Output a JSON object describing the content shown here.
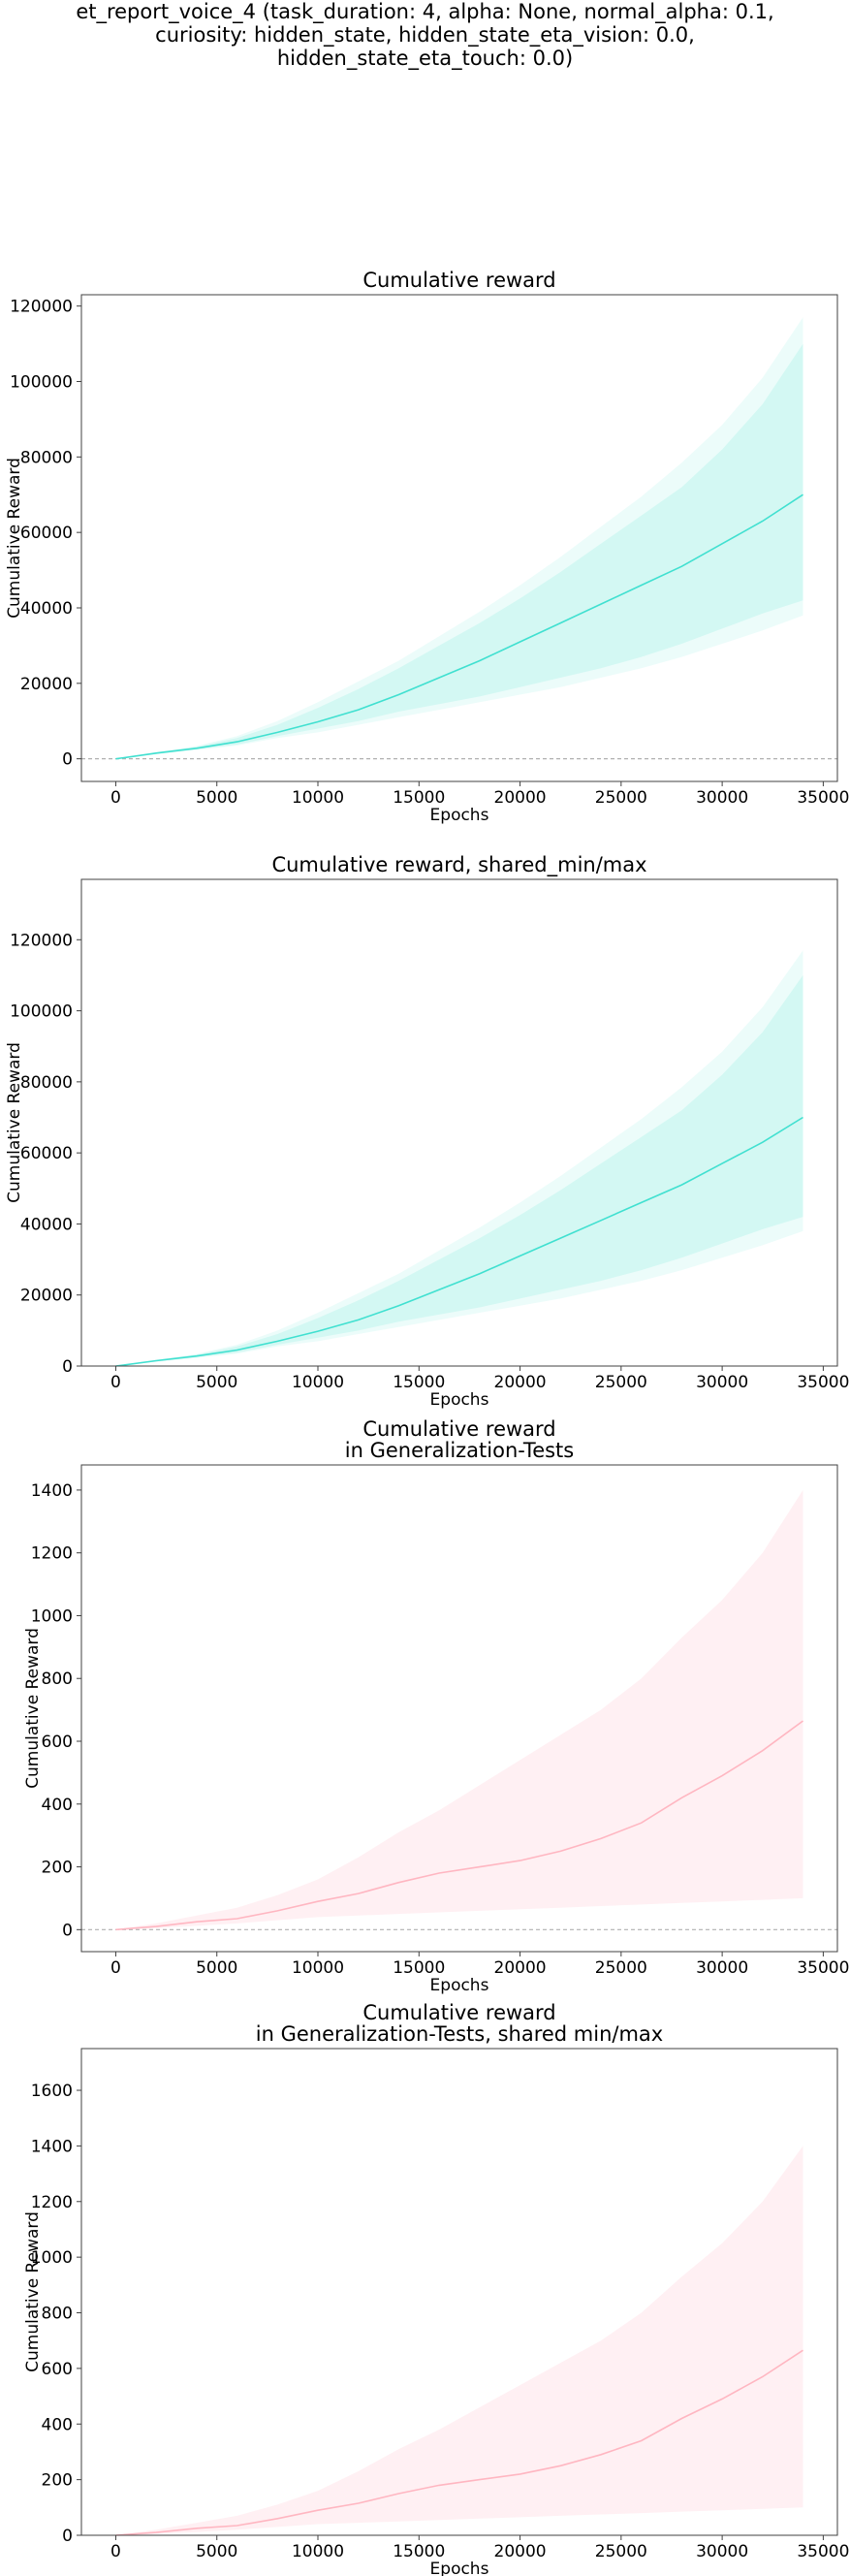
{
  "figure": {
    "title_lines": [
      "et_report_voice_4 (task_duration: 4, alpha: None, normal_alpha: 0.1,",
      "curiosity: hidden_state, hidden_state_eta_vision: 0.0,",
      "hidden_state_eta_touch: 0.0)"
    ]
  },
  "colors": {
    "train_line": "#40e0d0",
    "train_band": "#40e0d0",
    "test_line": "#ffb6c1",
    "test_band": "#ffc0cb",
    "zero_line": "#b0b0b0",
    "axis": "#404040"
  },
  "chart_data": [
    {
      "type": "line",
      "title_lines": [
        "Cumulative reward"
      ],
      "xlabel": "Epochs",
      "ylabel": "Cumulative Reward",
      "xlim": [
        -1700,
        35700
      ],
      "ylim": [
        -6000,
        123000
      ],
      "xticks": [
        0,
        5000,
        10000,
        15000,
        20000,
        25000,
        30000,
        35000
      ],
      "yticks": [
        0,
        20000,
        40000,
        60000,
        80000,
        100000,
        120000
      ],
      "zero_line": true,
      "theme": "train",
      "x": [
        0,
        2000,
        4000,
        6000,
        8000,
        10000,
        12000,
        14000,
        16000,
        18000,
        20000,
        22000,
        24000,
        26000,
        28000,
        30000,
        32000,
        34000
      ],
      "series": [
        {
          "role": "mean",
          "values": [
            0,
            1500,
            2800,
            4500,
            7000,
            9800,
            13000,
            17000,
            21500,
            26000,
            31000,
            36000,
            41000,
            46000,
            51000,
            57000,
            63000,
            70000
          ]
        },
        {
          "role": "band_inner",
          "lower": [
            0,
            1300,
            2500,
            3800,
            6000,
            8000,
            10000,
            12500,
            14500,
            16500,
            19000,
            21500,
            24000,
            27000,
            30500,
            34500,
            38500,
            42000
          ],
          "upper": [
            0,
            1700,
            3200,
            5500,
            9000,
            13500,
            18500,
            24000,
            30000,
            36000,
            42500,
            49500,
            57000,
            64500,
            72000,
            82000,
            94000,
            110000
          ]
        },
        {
          "role": "band_outer",
          "lower": [
            0,
            1200,
            2300,
            3500,
            5500,
            7000,
            9000,
            11000,
            13000,
            15000,
            17000,
            19000,
            21500,
            24000,
            27000,
            30500,
            34000,
            38000
          ],
          "upper": [
            0,
            1800,
            3400,
            6000,
            10000,
            15000,
            20500,
            26000,
            32500,
            39000,
            46000,
            53500,
            61500,
            69500,
            78500,
            88500,
            101000,
            117000
          ]
        }
      ]
    },
    {
      "type": "line",
      "title_lines": [
        "Cumulative reward, shared_min/max"
      ],
      "xlabel": "Epochs",
      "ylabel": "Cumulative Reward",
      "xlim": [
        -1700,
        35700
      ],
      "ylim": [
        0,
        137000
      ],
      "xticks": [
        0,
        5000,
        10000,
        15000,
        20000,
        25000,
        30000,
        35000
      ],
      "yticks": [
        0,
        20000,
        40000,
        60000,
        80000,
        100000,
        120000
      ],
      "zero_line": false,
      "theme": "train",
      "x": [
        0,
        2000,
        4000,
        6000,
        8000,
        10000,
        12000,
        14000,
        16000,
        18000,
        20000,
        22000,
        24000,
        26000,
        28000,
        30000,
        32000,
        34000
      ],
      "series": [
        {
          "role": "mean",
          "values": [
            0,
            1500,
            2800,
            4500,
            7000,
            9800,
            13000,
            17000,
            21500,
            26000,
            31000,
            36000,
            41000,
            46000,
            51000,
            57000,
            63000,
            70000
          ]
        },
        {
          "role": "band_inner",
          "lower": [
            0,
            1300,
            2500,
            3800,
            6000,
            8000,
            10000,
            12500,
            14500,
            16500,
            19000,
            21500,
            24000,
            27000,
            30500,
            34500,
            38500,
            42000
          ],
          "upper": [
            0,
            1700,
            3200,
            5500,
            9000,
            13500,
            18500,
            24000,
            30000,
            36000,
            42500,
            49500,
            57000,
            64500,
            72000,
            82000,
            94000,
            110000
          ]
        },
        {
          "role": "band_outer",
          "lower": [
            0,
            1200,
            2300,
            3500,
            5500,
            7000,
            9000,
            11000,
            13000,
            15000,
            17000,
            19000,
            21500,
            24000,
            27000,
            30500,
            34000,
            38000
          ],
          "upper": [
            0,
            1800,
            3400,
            6000,
            10000,
            15000,
            20500,
            26000,
            32500,
            39000,
            46000,
            53500,
            61500,
            69500,
            78500,
            88500,
            101000,
            117000
          ]
        }
      ]
    },
    {
      "type": "line",
      "title_lines": [
        "Cumulative reward",
        "in Generalization-Tests"
      ],
      "xlabel": "Epochs",
      "ylabel": "Cumulative Reward",
      "xlim": [
        -1700,
        35700
      ],
      "ylim": [
        -70,
        1480
      ],
      "xticks": [
        0,
        5000,
        10000,
        15000,
        20000,
        25000,
        30000,
        35000
      ],
      "yticks": [
        0,
        200,
        400,
        600,
        800,
        1000,
        1200,
        1400
      ],
      "zero_line": true,
      "theme": "test",
      "x": [
        0,
        2000,
        4000,
        6000,
        8000,
        10000,
        12000,
        14000,
        16000,
        18000,
        20000,
        22000,
        24000,
        26000,
        28000,
        30000,
        32000,
        34000
      ],
      "series": [
        {
          "role": "mean",
          "values": [
            0,
            10,
            25,
            35,
            60,
            90,
            115,
            150,
            180,
            200,
            220,
            250,
            290,
            340,
            420,
            490,
            570,
            665
          ]
        },
        {
          "role": "band_inner",
          "lower": [
            0,
            5,
            12,
            20,
            30,
            40,
            45,
            50,
            55,
            60,
            65,
            70,
            75,
            80,
            85,
            90,
            95,
            100
          ],
          "upper": [
            0,
            20,
            45,
            70,
            110,
            160,
            230,
            310,
            380,
            460,
            540,
            620,
            700,
            800,
            930,
            1050,
            1200,
            1400
          ]
        },
        {
          "role": "band_outer",
          "lower": [
            0,
            5,
            12,
            20,
            30,
            40,
            45,
            50,
            55,
            60,
            65,
            70,
            75,
            80,
            85,
            90,
            95,
            100
          ],
          "upper": [
            0,
            20,
            45,
            70,
            110,
            160,
            230,
            310,
            380,
            460,
            540,
            620,
            700,
            800,
            930,
            1050,
            1200,
            1400
          ]
        }
      ]
    },
    {
      "type": "line",
      "title_lines": [
        "Cumulative reward",
        "in Generalization-Tests, shared min/max"
      ],
      "xlabel": "Epochs",
      "ylabel": "Cumulative Reward",
      "xlim": [
        -1700,
        35700
      ],
      "ylim": [
        0,
        1750
      ],
      "xticks": [
        0,
        5000,
        10000,
        15000,
        20000,
        25000,
        30000,
        35000
      ],
      "yticks": [
        0,
        200,
        400,
        600,
        800,
        1000,
        1200,
        1400,
        1600
      ],
      "zero_line": false,
      "theme": "test",
      "x": [
        0,
        2000,
        4000,
        6000,
        8000,
        10000,
        12000,
        14000,
        16000,
        18000,
        20000,
        22000,
        24000,
        26000,
        28000,
        30000,
        32000,
        34000
      ],
      "series": [
        {
          "role": "mean",
          "values": [
            0,
            10,
            25,
            35,
            60,
            90,
            115,
            150,
            180,
            200,
            220,
            250,
            290,
            340,
            420,
            490,
            570,
            665
          ]
        },
        {
          "role": "band_inner",
          "lower": [
            0,
            5,
            12,
            20,
            30,
            40,
            45,
            50,
            55,
            60,
            65,
            70,
            75,
            80,
            85,
            90,
            95,
            100
          ],
          "upper": [
            0,
            20,
            45,
            70,
            110,
            160,
            230,
            310,
            380,
            460,
            540,
            620,
            700,
            800,
            930,
            1050,
            1200,
            1400
          ]
        },
        {
          "role": "band_outer",
          "lower": [
            0,
            5,
            12,
            20,
            30,
            40,
            45,
            50,
            55,
            60,
            65,
            70,
            75,
            80,
            85,
            90,
            95,
            100
          ],
          "upper": [
            0,
            20,
            45,
            70,
            110,
            160,
            230,
            310,
            380,
            460,
            540,
            620,
            700,
            800,
            930,
            1050,
            1200,
            1400
          ]
        }
      ]
    }
  ]
}
